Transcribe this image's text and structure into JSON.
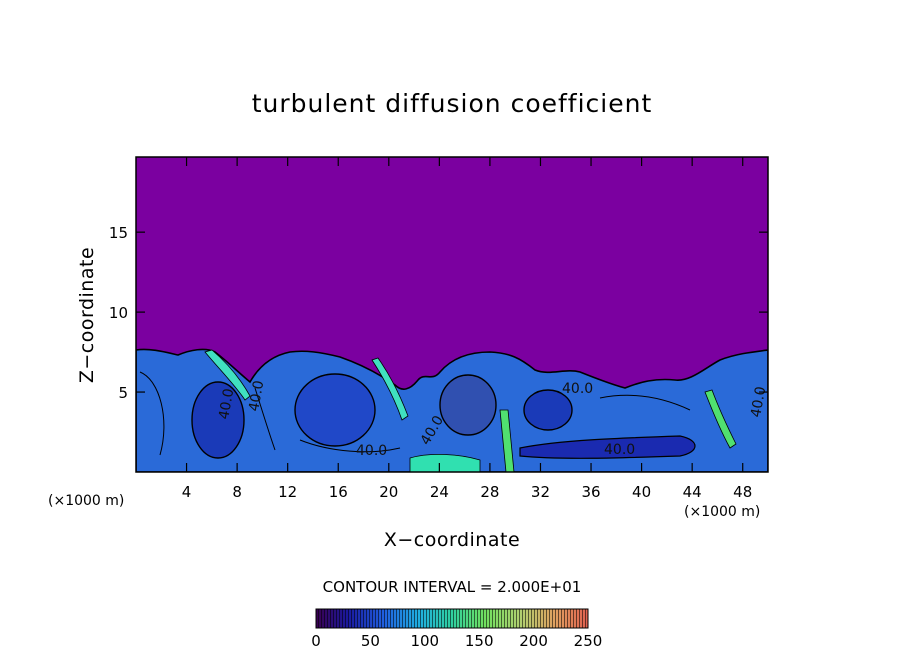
{
  "chart_data": {
    "type": "heatmap",
    "title": "turbulent diffusion coefficient",
    "xlabel": "X−coordinate",
    "ylabel": "Z−coordinate",
    "x_unit_left": "(×1000 m)",
    "x_unit_right": "(×1000 m)",
    "xlim": [
      0,
      50
    ],
    "ylim": [
      0,
      19.7
    ],
    "x_ticks": [
      4,
      8,
      12,
      16,
      20,
      24,
      28,
      32,
      36,
      40,
      44,
      48
    ],
    "y_ticks": [
      5,
      10,
      15
    ],
    "contour_interval_text": "CONTOUR INTERVAL = 2.000E+01",
    "contour_interval": 20,
    "contour_labels": [
      "40.0",
      "40.0",
      "40.0",
      "40.0",
      "40.0",
      "40.0",
      "40.0"
    ],
    "colorbar": {
      "min": 0,
      "max": 250,
      "ticks": [
        0,
        50,
        100,
        150,
        200,
        250
      ],
      "colors": [
        "#7a00a0",
        "#1a1aa0",
        "#2060e0",
        "#20b0e0",
        "#30e0b0",
        "#60e060",
        "#b0e060",
        "#e0a040",
        "#e05030"
      ]
    },
    "background_value_color": "#7b00a0",
    "boundary_layer": {
      "description_values_km": {
        "cell_tops_x": [
          3,
          9,
          14,
          22,
          29,
          36,
          41,
          47
        ],
        "cell_tops_z": [
          7.3,
          6.2,
          7.5,
          6.0,
          7.6,
          6.2,
          5.6,
          7.2
        ]
      }
    }
  }
}
